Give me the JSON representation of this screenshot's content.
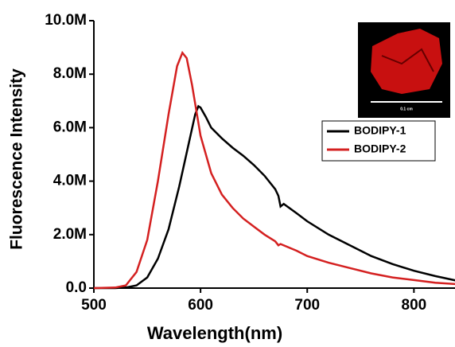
{
  "chart_data": {
    "type": "line",
    "xlabel": "Wavelength(nm)",
    "ylabel": "Fluorescence Intensity",
    "xlim": [
      500,
      840
    ],
    "xticks": [
      500,
      600,
      700,
      800
    ],
    "ylim": [
      0,
      10000000
    ],
    "yticks": [
      {
        "value": 0,
        "label": "0.0"
      },
      {
        "value": 2000000,
        "label": "2.0M"
      },
      {
        "value": 4000000,
        "label": "4.0M"
      },
      {
        "value": 6000000,
        "label": "6.0M"
      },
      {
        "value": 8000000,
        "label": "8.0M"
      },
      {
        "value": 10000000,
        "label": "10.0M"
      }
    ],
    "legend": "upper right",
    "inset_label": "0.1 cm",
    "series": [
      {
        "name": "BODIPY-1",
        "color": "#000000",
        "x": [
          500,
          520,
          530,
          540,
          550,
          560,
          570,
          580,
          590,
          595,
          598,
          600,
          605,
          610,
          620,
          630,
          640,
          650,
          660,
          670,
          673,
          675,
          678,
          690,
          700,
          720,
          740,
          760,
          780,
          800,
          820,
          840
        ],
        "values": [
          0,
          0,
          20000,
          100000,
          400000,
          1100000,
          2200000,
          3800000,
          5600000,
          6500000,
          6800000,
          6750000,
          6400000,
          6000000,
          5600000,
          5250000,
          4950000,
          4600000,
          4200000,
          3700000,
          3450000,
          3050000,
          3150000,
          2800000,
          2500000,
          2000000,
          1600000,
          1200000,
          900000,
          650000,
          450000,
          280000
        ]
      },
      {
        "name": "BODIPY-2",
        "color": "#d42020",
        "x": [
          500,
          520,
          530,
          540,
          550,
          560,
          570,
          578,
          583,
          587,
          592,
          600,
          610,
          620,
          630,
          640,
          650,
          660,
          670,
          673,
          675,
          690,
          700,
          720,
          740,
          760,
          780,
          800,
          820,
          840
        ],
        "values": [
          0,
          20000,
          100000,
          600000,
          1800000,
          4000000,
          6500000,
          8300000,
          8800000,
          8600000,
          7600000,
          5700000,
          4300000,
          3500000,
          3000000,
          2600000,
          2300000,
          2000000,
          1750000,
          1600000,
          1650000,
          1400000,
          1200000,
          950000,
          750000,
          550000,
          400000,
          300000,
          200000,
          150000
        ]
      }
    ]
  }
}
